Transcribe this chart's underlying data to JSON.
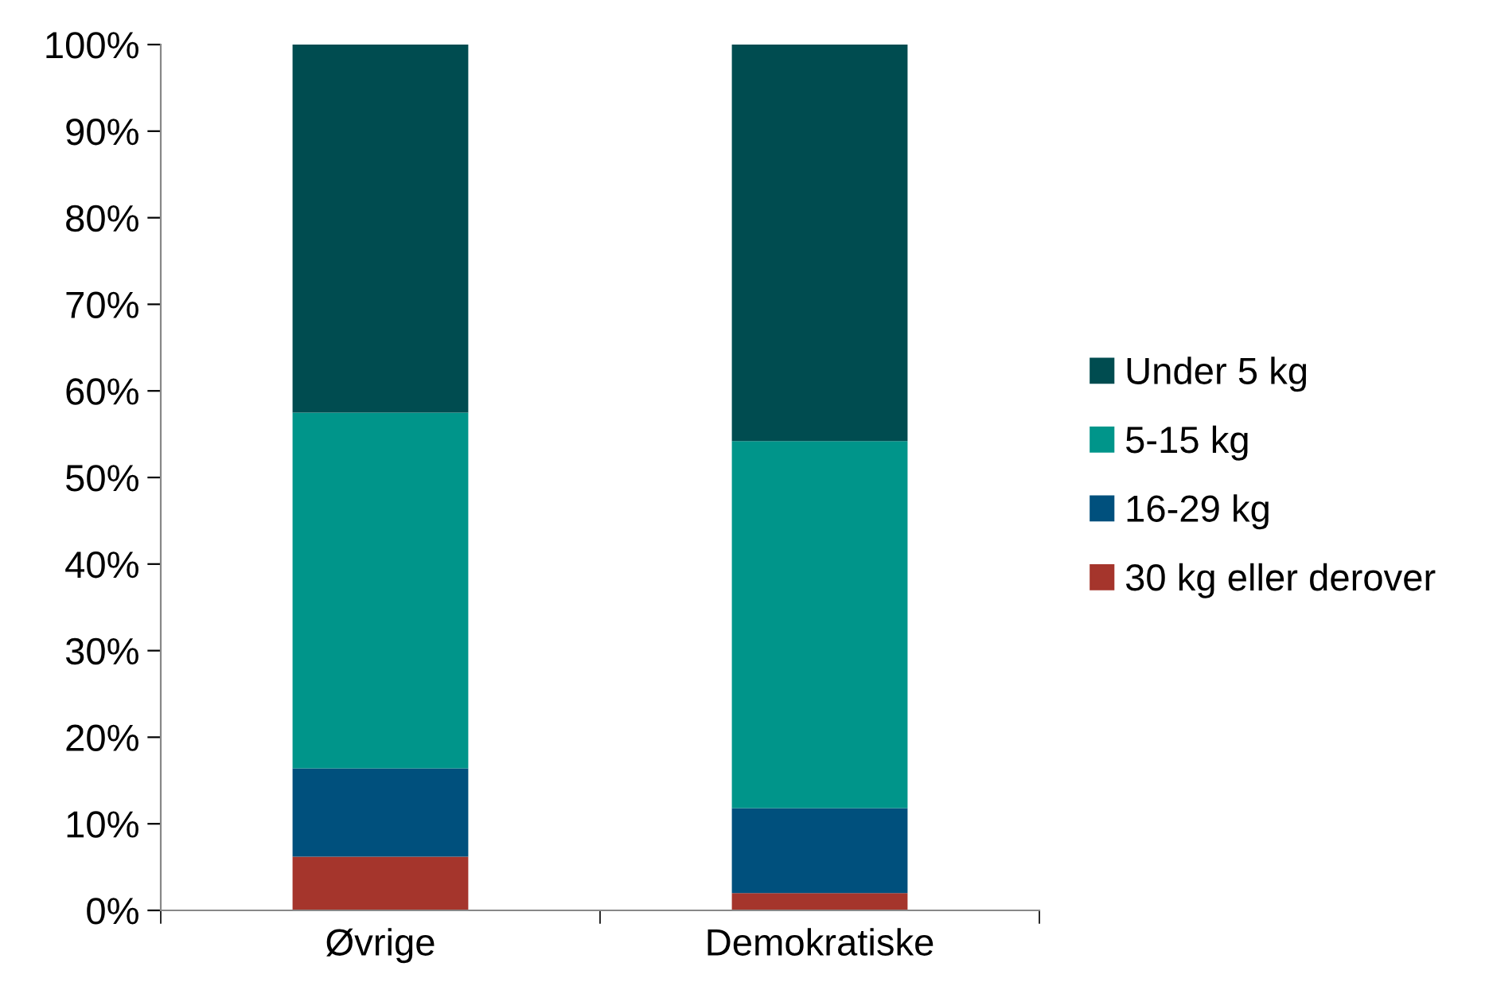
{
  "chart_data": {
    "type": "bar",
    "stacked": true,
    "categories": [
      "Øvrige",
      "Demokratiske"
    ],
    "series": [
      {
        "name": "30 kg eller derover",
        "color": "#a5352c",
        "values": [
          6.2,
          2.0
        ]
      },
      {
        "name": "16-29 kg",
        "color": "#00507d",
        "values": [
          10.2,
          9.8
        ]
      },
      {
        "name": "5-15 kg",
        "color": "#00958a",
        "values": [
          41.1,
          42.4
        ]
      },
      {
        "name": "Under 5 kg",
        "color": "#004c50",
        "values": [
          42.5,
          45.8
        ]
      }
    ],
    "ylim": [
      0,
      100
    ],
    "yticks": [
      {
        "value": 0,
        "label": "0%"
      },
      {
        "value": 10,
        "label": "10%"
      },
      {
        "value": 20,
        "label": "20%"
      },
      {
        "value": 30,
        "label": "30%"
      },
      {
        "value": 40,
        "label": "40%"
      },
      {
        "value": 50,
        "label": "50%"
      },
      {
        "value": 60,
        "label": "60%"
      },
      {
        "value": 70,
        "label": "70%"
      },
      {
        "value": 80,
        "label": "80%"
      },
      {
        "value": 90,
        "label": "90%"
      },
      {
        "value": 100,
        "label": "100%"
      }
    ],
    "grid": false,
    "legend": "right"
  }
}
